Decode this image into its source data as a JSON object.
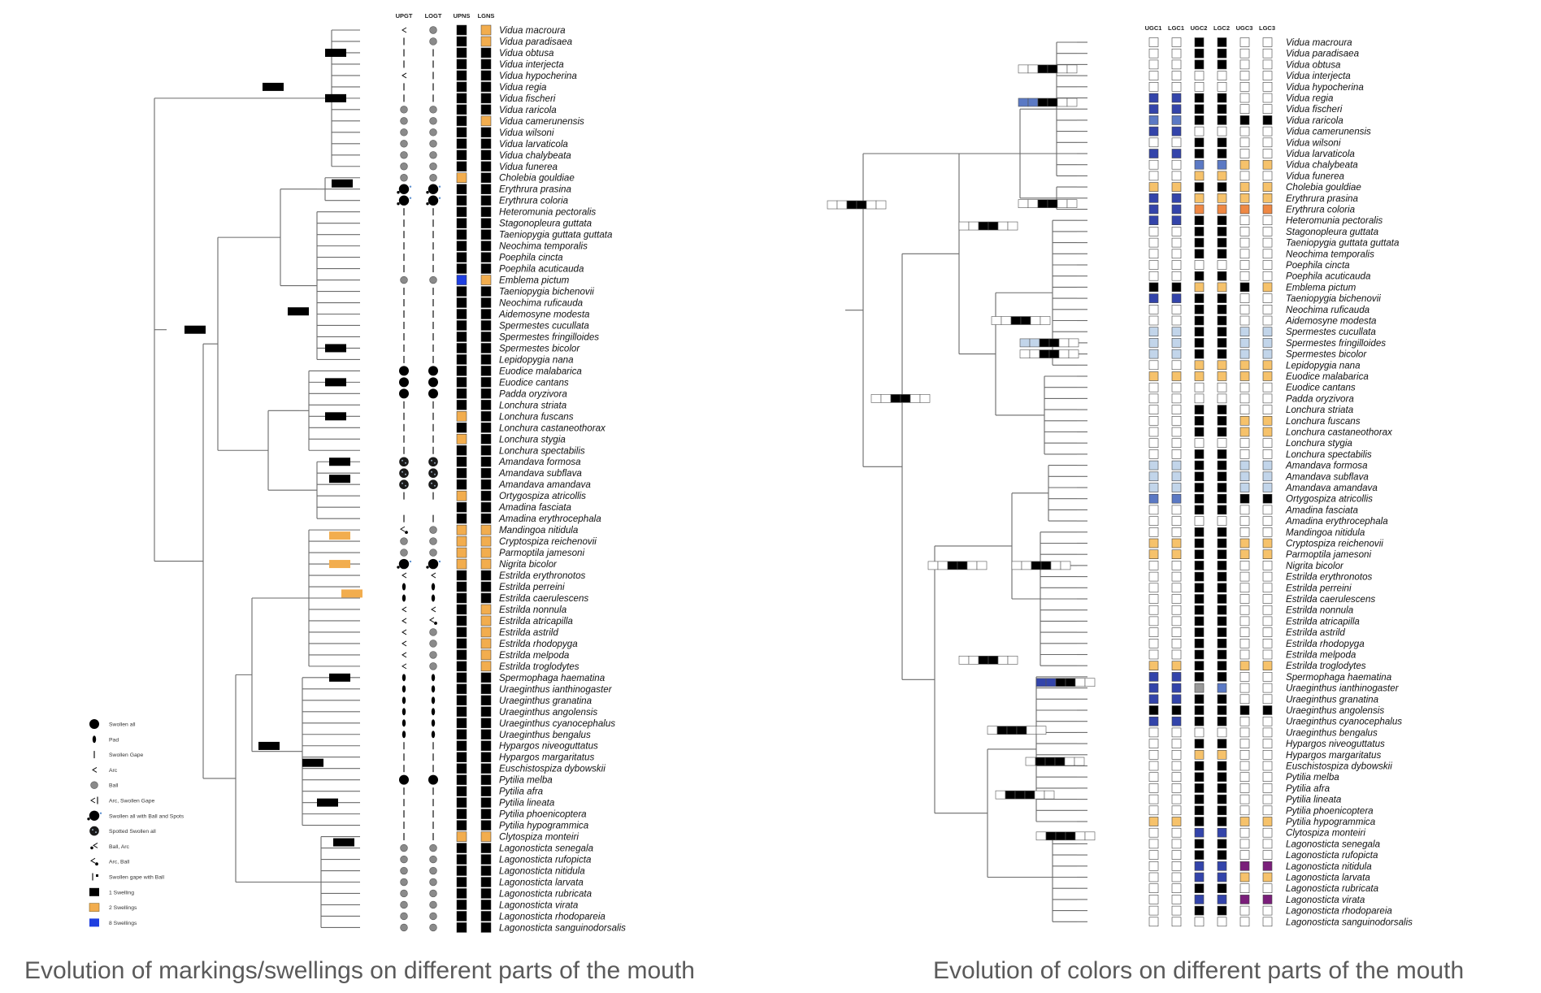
{
  "species": [
    "Vidua macroura",
    "Vidua paradisaea",
    "Vidua obtusa",
    "Vidua interjecta",
    "Vidua hypocherina",
    "Vidua regia",
    "Vidua fischeri",
    "Vidua raricola",
    "Vidua camerunensis",
    "Vidua wilsoni",
    "Vidua larvaticola",
    "Vidua chalybeata",
    "Vidua funerea",
    "Cholebia gouldiae",
    "Erythrura prasina",
    "Erythrura coloria",
    "Heteromunia pectoralis",
    "Stagonopleura guttata",
    "Taeniopygia guttata guttata",
    "Neochima temporalis",
    "Poephila cincta",
    "Poephila acuticauda",
    "Emblema pictum",
    "Taeniopygia bichenovii",
    "Neochima ruficauda",
    "Aidemosyne modesta",
    "Spermestes cucullata",
    "Spermestes fringilloides",
    "Spermestes bicolor",
    "Lepidopygia nana",
    "Euodice malabarica",
    "Euodice cantans",
    "Padda oryzivora",
    "Lonchura striata",
    "Lonchura fuscans",
    "Lonchura castaneothorax",
    "Lonchura stygia",
    "Lonchura spectabilis",
    "Amandava formosa",
    "Amandava subflava",
    "Amandava amandava",
    "Ortygospiza atricollis",
    "Amadina fasciata",
    "Amadina erythrocephala",
    "Mandingoa nitidula",
    "Cryptospiza reichenovii",
    "Parmoptila jamesoni",
    "Nigrita bicolor",
    "Estrilda erythronotos",
    "Estrilda perreini",
    "Estrilda caerulescens",
    "Estrilda nonnula",
    "Estrilda atricapilla",
    "Estrilda astrild",
    "Estrilda rhodopyga",
    "Estrilda melpoda",
    "Estrilda troglodytes",
    "Spermophaga haematina",
    "Uraeginthus ianthinogaster",
    "Uraeginthus granatina",
    "Uraeginthus angolensis",
    "Uraeginthus cyanocephalus",
    "Uraeginthus bengalus",
    "Hypargos niveoguttatus",
    "Hypargos margaritatus",
    "Euschistospiza dybowskii",
    "Pytilia melba",
    "Pytilia afra",
    "Pytilia lineata",
    "Pytilia phoenicoptera",
    "Pytilia hypogrammica",
    "Clytospiza monteiri",
    "Lagonosticta senegala",
    "Lagonosticta rufopicta",
    "Lagonosticta nitidula",
    "Lagonosticta larvata",
    "Lagonosticta rubricata",
    "Lagonosticta virata",
    "Lagonosticta rhodopareia",
    "Lagonosticta sanguinodorsalis"
  ],
  "left_panel": {
    "caption": "Evolution of markings/swellings on different parts of the mouth",
    "columns": [
      "UPGT",
      "LOGT",
      "UPNS",
      "LGNS"
    ],
    "upns_states": [
      1,
      1,
      1,
      1,
      1,
      1,
      1,
      1,
      1,
      1,
      1,
      1,
      1,
      2,
      1,
      1,
      1,
      1,
      1,
      1,
      1,
      1,
      8,
      1,
      1,
      1,
      1,
      1,
      1,
      1,
      1,
      1,
      1,
      1,
      2,
      1,
      2,
      1,
      1,
      1,
      1,
      2,
      1,
      1,
      2,
      2,
      2,
      2,
      1,
      1,
      1,
      1,
      1,
      1,
      1,
      1,
      1,
      1,
      1,
      1,
      1,
      1,
      1,
      1,
      1,
      1,
      1,
      1,
      1,
      1,
      1,
      2,
      1,
      1,
      1,
      1,
      1,
      1,
      1,
      1
    ],
    "lgns_states": [
      2,
      2,
      1,
      1,
      1,
      1,
      1,
      1,
      2,
      1,
      1,
      1,
      1,
      1,
      1,
      1,
      1,
      1,
      1,
      1,
      1,
      1,
      2,
      1,
      1,
      1,
      1,
      1,
      1,
      1,
      1,
      1,
      1,
      1,
      1,
      1,
      1,
      1,
      1,
      1,
      1,
      1,
      1,
      1,
      2,
      2,
      2,
      2,
      1,
      1,
      1,
      2,
      2,
      2,
      2,
      2,
      2,
      1,
      1,
      1,
      1,
      1,
      1,
      1,
      1,
      1,
      1,
      1,
      1,
      1,
      1,
      2,
      1,
      1,
      1,
      1,
      1,
      1,
      1,
      1
    ],
    "upgt_marks": [
      "arc",
      "gape",
      "gape",
      "gape",
      "arc",
      "gape",
      "gape",
      "ball",
      "ball",
      "ball",
      "ball",
      "ball",
      "ball",
      "ball",
      "swollen-ball-spots",
      "swollen-ball-spots",
      "gape",
      "gape",
      "gape",
      "gape",
      "gape",
      "gape",
      "ball",
      "gape",
      "gape",
      "gape",
      "gape",
      "gape",
      "gape",
      "gape",
      "swollen",
      "swollen",
      "swollen",
      "gape",
      "gape",
      "gape",
      "gape",
      "gape",
      "spotted",
      "spotted",
      "spotted",
      "gape",
      "none",
      "gape",
      "arc-ball",
      "ball",
      "ball",
      "swollen-ball-spots",
      "arc",
      "pad",
      "pad",
      "arc",
      "arc",
      "arc",
      "arc",
      "arc",
      "arc",
      "pad",
      "pad",
      "pad",
      "pad",
      "pad",
      "pad",
      "gape",
      "gape",
      "gape",
      "swollen",
      "gape",
      "gape",
      "gape",
      "gape",
      "gape",
      "ball",
      "ball",
      "ball",
      "ball",
      "ball",
      "ball",
      "ball",
      "ball"
    ],
    "logt_marks": [
      "ball",
      "ball",
      "gape",
      "gape",
      "gape",
      "gape",
      "gape",
      "ball",
      "ball",
      "ball",
      "ball",
      "ball",
      "ball",
      "ball",
      "swollen-ball-spots",
      "swollen-ball-spots",
      "gape",
      "gape",
      "gape",
      "gape",
      "gape",
      "gape",
      "ball",
      "gape",
      "gape",
      "gape",
      "gape",
      "gape",
      "gape",
      "gape",
      "swollen",
      "swollen",
      "swollen",
      "gape",
      "gape",
      "gape",
      "gape",
      "gape",
      "spotted",
      "spotted",
      "spotted",
      "gape",
      "none",
      "gape",
      "ball",
      "ball",
      "ball",
      "swollen-ball-spots",
      "arc",
      "pad",
      "pad",
      "arc",
      "arc-ball",
      "ball",
      "ball",
      "ball",
      "ball",
      "pad",
      "pad",
      "pad",
      "pad",
      "pad",
      "pad",
      "gape",
      "gape",
      "gape",
      "swollen",
      "gape",
      "gape",
      "gape",
      "gape",
      "gape",
      "ball",
      "ball",
      "ball",
      "ball",
      "ball",
      "ball",
      "ball",
      "ball"
    ],
    "legend": [
      {
        "symbol": "swollen",
        "label": "Swollen all"
      },
      {
        "symbol": "pad",
        "label": "Pad"
      },
      {
        "symbol": "gape",
        "label": "Swollen Gape"
      },
      {
        "symbol": "arc",
        "label": "Arc"
      },
      {
        "symbol": "ball",
        "label": "Ball"
      },
      {
        "symbol": "arc-gape",
        "label": "Arc, Swollen Gape"
      },
      {
        "symbol": "swollen-ball-spots",
        "label": "Swollen all with Ball and Spots"
      },
      {
        "symbol": "spotted",
        "label": "Spotted Swollen all"
      },
      {
        "symbol": "ball-arc",
        "label": "Ball, Arc"
      },
      {
        "symbol": "arc-ball",
        "label": "Arc, Ball"
      },
      {
        "symbol": "gape-ball",
        "label": "Swollen gape with Ball"
      },
      {
        "symbol": "sw1",
        "label": "1 Swelling"
      },
      {
        "symbol": "sw2",
        "label": "2 Swellings"
      },
      {
        "symbol": "sw8",
        "label": "8 Swellings"
      }
    ]
  },
  "right_panel": {
    "caption": "Evolution of colors on different parts of the mouth",
    "columns": [
      "UGC1",
      "LGC1",
      "UGC2",
      "LGC2",
      "UGC3",
      "LGC3"
    ],
    "color_codes": {
      "0": "#ffffff",
      "1": "#000000",
      "2": "#f6c26b",
      "3": "#3344aa",
      "4": "#c2d5ea",
      "5": "#ee8844",
      "6": "#7a1f7a",
      "7": "#999999",
      "8": "#5b79c4"
    },
    "matrix": [
      "001100",
      "001100",
      "001100",
      "000000",
      "000000",
      "331100",
      "331100",
      "881111",
      "330000",
      "001100",
      "331100",
      "008822",
      "002200",
      "221122",
      "332222",
      "335555",
      "331100",
      "001100",
      "001100",
      "001100",
      "000000",
      "001100",
      "112212",
      "331100",
      "001100",
      "001100",
      "441144",
      "441144",
      "441144",
      "002222",
      "222222",
      "000000",
      "000000",
      "001100",
      "001122",
      "001122",
      "000000",
      "001100",
      "441144",
      "441144",
      "441144",
      "881111",
      "001100",
      "000000",
      "001100",
      "221122",
      "221122",
      "001100",
      "001100",
      "001100",
      "001100",
      "001100",
      "001100",
      "001100",
      "001100",
      "001100",
      "221122",
      "331100",
      "337800",
      "331100",
      "111111",
      "331100",
      "000000",
      "001100",
      "002200",
      "001100",
      "001100",
      "001100",
      "001100",
      "001100",
      "221122",
      "003300",
      "001100",
      "001100",
      "003366",
      "003322",
      "001100",
      "003366",
      "001100",
      "000000"
    ]
  }
}
